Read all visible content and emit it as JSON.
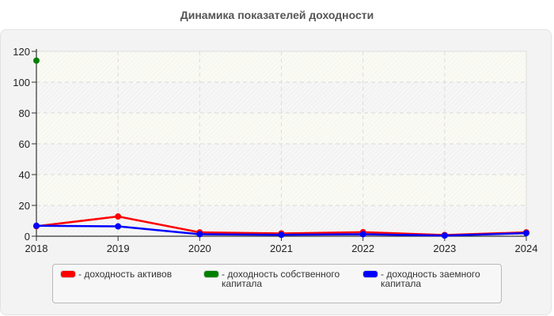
{
  "title": "Динамика показателей доходности",
  "legend": {
    "items": [
      {
        "label": "- доходность активов",
        "color": "#ff0000"
      },
      {
        "label": "- доходность собственного\nкапитала",
        "color": "#008000"
      },
      {
        "label": "- доходность заемного\nкапитала",
        "color": "#0000ff"
      }
    ]
  },
  "axis": {
    "x_ticks": [
      "2018",
      "2019",
      "2020",
      "2021",
      "2022",
      "2023",
      "2024"
    ],
    "y_ticks": [
      "0",
      "20",
      "40",
      "60",
      "80",
      "100",
      "120"
    ]
  },
  "chart_data": {
    "type": "line",
    "title": "Динамика показателей доходности",
    "xlabel": "",
    "ylabel": "",
    "x": [
      "2018",
      "2019",
      "2020",
      "2021",
      "2022",
      "2023",
      "2024"
    ],
    "ylim": [
      0,
      120
    ],
    "grid": true,
    "legend_position": "bottom",
    "series": [
      {
        "name": "доходность активов",
        "color": "#ff0000",
        "values": [
          6.5,
          12.8,
          2.5,
          1.8,
          2.6,
          0.8,
          2.5
        ]
      },
      {
        "name": "доходность собственного капитала",
        "color": "#008000",
        "values": [
          114,
          null,
          null,
          null,
          null,
          null,
          null
        ]
      },
      {
        "name": "доходность заемного капитала",
        "color": "#0000ff",
        "values": [
          6.8,
          6.4,
          1.3,
          0.9,
          1.3,
          0.4,
          2.0
        ]
      }
    ]
  }
}
